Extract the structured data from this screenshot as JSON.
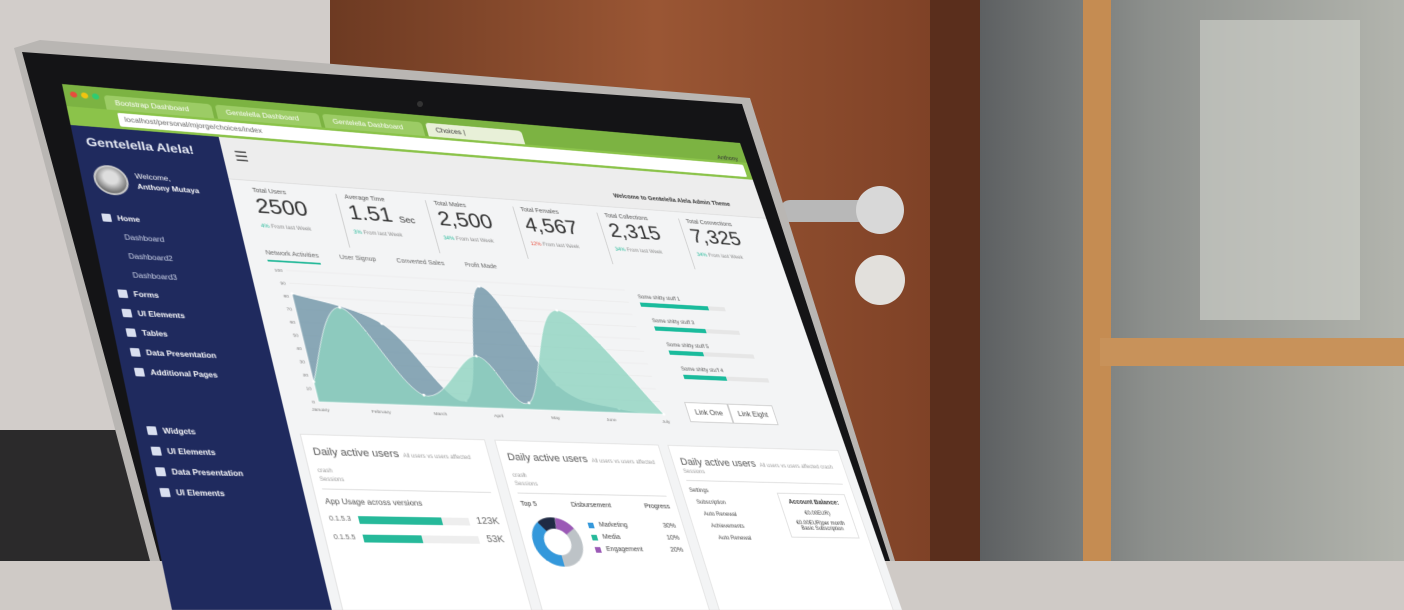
{
  "browser": {
    "tabs": [
      "Bootstrap Dashboard",
      "Gentelella Dashboard",
      "Gentelella Dashboard",
      "Choices |"
    ],
    "url": "localhost/personal/mjorge/choices/index",
    "user": "Anthony"
  },
  "sidebar": {
    "brand": "Gentelella Alela!",
    "welcome": "Welcome,",
    "user_name": "Anthony Mutaya",
    "items": [
      {
        "label": "Home",
        "type": "main"
      },
      {
        "label": "Dashboard",
        "type": "sub"
      },
      {
        "label": "Dashboard2",
        "type": "sub"
      },
      {
        "label": "Dashboard3",
        "type": "sub"
      },
      {
        "label": "Forms",
        "type": "main"
      },
      {
        "label": "UI Elements",
        "type": "main"
      },
      {
        "label": "Tables",
        "type": "main"
      },
      {
        "label": "Data Presentation",
        "type": "main"
      },
      {
        "label": "Additional Pages",
        "type": "main"
      },
      {
        "label": "Widgets",
        "type": "main"
      },
      {
        "label": "UI Elements",
        "type": "main"
      },
      {
        "label": "Data Presentation",
        "type": "main"
      },
      {
        "label": "UI Elements",
        "type": "main"
      }
    ]
  },
  "header": {
    "welcome_text": "Welcome to Gentelella Alela Admin Theme"
  },
  "stats": [
    {
      "label": "Total Users",
      "value": "2500",
      "unit": "",
      "change": "4%",
      "note": "From last Week",
      "trend": "up"
    },
    {
      "label": "Average Time",
      "value": "1.51",
      "unit": "Sec",
      "change": "3%",
      "note": "From last Week",
      "trend": "up"
    },
    {
      "label": "Total Males",
      "value": "2,500",
      "unit": "",
      "change": "34%",
      "note": "From last Week",
      "trend": "up"
    },
    {
      "label": "Total Females",
      "value": "4,567",
      "unit": "",
      "change": "12%",
      "note": "From last Week",
      "trend": "down"
    },
    {
      "label": "Total Collections",
      "value": "2,315",
      "unit": "",
      "change": "34%",
      "note": "From last Week",
      "trend": "up"
    },
    {
      "label": "Total Connections",
      "value": "7,325",
      "unit": "",
      "change": "34%",
      "note": "From last Week",
      "trend": "up"
    }
  ],
  "chart_tabs": [
    "Network Activities",
    "User Signup",
    "Converted Sales",
    "Profit Made"
  ],
  "chart_data": {
    "type": "area",
    "categories": [
      "January",
      "February",
      "March",
      "April",
      "May",
      "June",
      "July"
    ],
    "yticks": [
      0,
      10,
      20,
      30,
      40,
      50,
      60,
      70,
      80,
      90,
      100
    ],
    "ylim": [
      0,
      100
    ],
    "grid": true,
    "colors": [
      "#6e93a6",
      "#8fd3c1"
    ],
    "series": [
      {
        "x": [
          0,
          1.4,
          2.5,
          3.3,
          4.2,
          5.2,
          6
        ],
        "values": [
          82,
          62,
          5,
          96,
          20,
          3,
          0
        ]
      },
      {
        "x": [
          0,
          0.75,
          1.8,
          2.9,
          3.6,
          4.6,
          6
        ],
        "values": [
          15,
          73,
          8,
          40,
          5,
          80,
          0
        ]
      }
    ]
  },
  "progress": [
    {
      "label": "Some shitty stuff 1",
      "value": 0.8
    },
    {
      "label": "Some shitty stuff 3",
      "value": 0.6
    },
    {
      "label": "Some shitty stuff 5",
      "value": 0.4
    },
    {
      "label": "Some shitty stuff 4",
      "value": 0.5
    }
  ],
  "links": [
    "Link One",
    "Link Eight"
  ],
  "widgets": {
    "title": "Daily active users",
    "subtitle": "Sessions",
    "note": "All users vs users affected crash",
    "app_usage": {
      "title": "App Usage across versions",
      "rows": [
        {
          "label": "0.1.5.3",
          "value": "123K",
          "fill": 0.75
        },
        {
          "label": "0.1.5.5",
          "value": "53K",
          "fill": 0.5
        }
      ]
    },
    "top5": {
      "headers": [
        "Top 5",
        "Disbursement",
        "Progress"
      ],
      "items": [
        {
          "label": "Marketing",
          "value": "30%",
          "color": "#3498db"
        },
        {
          "label": "Media",
          "value": "10%",
          "color": "#26b99a"
        },
        {
          "label": "Engagement",
          "value": "20%",
          "color": "#9b59b6"
        }
      ]
    },
    "menu": [
      "Settings",
      "Subscription",
      "Auto Renewal",
      "Achievements",
      "Auto Renewal"
    ],
    "account": {
      "title": "Account Balance:",
      "line1": "€0.00EUR)",
      "line2": "€0.00EUR)per month",
      "line3": "Basic Subscription"
    }
  }
}
